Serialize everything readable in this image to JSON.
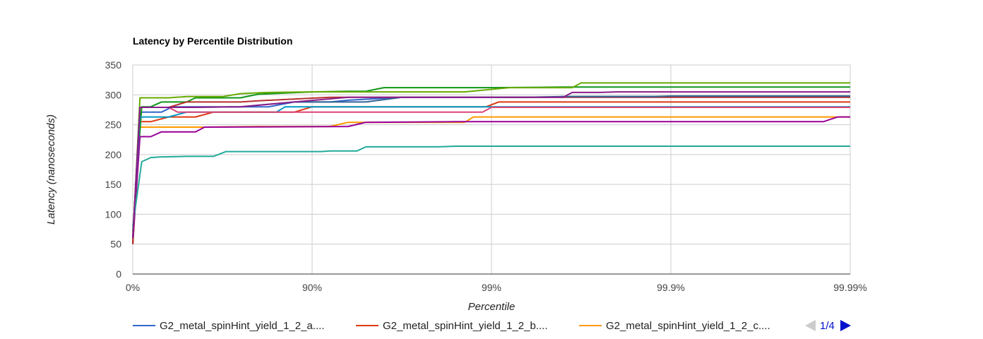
{
  "chart_data": {
    "type": "line",
    "title": "Latency by Percentile Distribution",
    "xlabel": "Percentile",
    "ylabel": "Latency (nanoseconds)",
    "x_tick_labels": [
      "0%",
      "90%",
      "99%",
      "99.9%",
      "99.99%"
    ],
    "x_scale": "log-percentile",
    "x_range": [
      0,
      4
    ],
    "y_ticks": [
      0,
      50,
      100,
      150,
      200,
      250,
      300,
      350
    ],
    "ylim": [
      0,
      350
    ],
    "grid": true,
    "legend_position": "bottom",
    "legend": {
      "visible_entries": [
        {
          "label": "G2_metal_spinHint_yield_1_2_a....",
          "color": "#3366cc"
        },
        {
          "label": "G2_metal_spinHint_yield_1_2_b....",
          "color": "#dc3912"
        },
        {
          "label": "G2_metal_spinHint_yield_1_2_c....",
          "color": "#ff9900"
        }
      ],
      "page_indicator": "1/4"
    },
    "series": [
      {
        "color": "#3366cc",
        "points": [
          [
            0,
            50
          ],
          [
            0.04,
            271
          ],
          [
            0.16,
            271
          ],
          [
            0.22,
            280
          ],
          [
            0.76,
            280
          ],
          [
            0.9,
            288
          ],
          [
            1.1,
            288
          ],
          [
            1.2,
            291
          ],
          [
            1.5,
            296
          ],
          [
            2.3,
            296
          ],
          [
            2.4,
            297
          ],
          [
            2.5,
            297
          ],
          [
            3.0,
            297
          ],
          [
            4.0,
            297
          ]
        ]
      },
      {
        "color": "#dc3912",
        "points": [
          [
            0,
            50
          ],
          [
            0.04,
            255
          ],
          [
            0.1,
            255
          ],
          [
            0.2,
            263
          ],
          [
            0.35,
            263
          ],
          [
            0.45,
            271
          ],
          [
            0.9,
            271
          ],
          [
            1.0,
            280
          ],
          [
            1.5,
            280
          ],
          [
            1.97,
            280
          ],
          [
            2.04,
            288
          ],
          [
            3.0,
            288
          ],
          [
            4.0,
            288
          ]
        ]
      },
      {
        "color": "#ff9900",
        "points": [
          [
            0,
            50
          ],
          [
            0.04,
            246
          ],
          [
            0.15,
            246
          ],
          [
            0.4,
            246
          ],
          [
            0.7,
            247
          ],
          [
            1.1,
            247
          ],
          [
            1.2,
            254
          ],
          [
            1.5,
            254
          ],
          [
            1.85,
            254
          ],
          [
            1.9,
            263
          ],
          [
            4.0,
            263
          ]
        ]
      },
      {
        "color": "#109618",
        "points": [
          [
            0,
            70
          ],
          [
            0.05,
            280
          ],
          [
            0.1,
            280
          ],
          [
            0.16,
            288
          ],
          [
            0.3,
            288
          ],
          [
            0.35,
            295
          ],
          [
            0.6,
            295
          ],
          [
            0.7,
            301
          ],
          [
            1.0,
            305
          ],
          [
            1.2,
            306
          ],
          [
            1.3,
            306
          ],
          [
            1.4,
            312
          ],
          [
            2.0,
            312
          ],
          [
            2.4,
            313
          ],
          [
            3.0,
            313
          ],
          [
            4.0,
            313
          ]
        ]
      },
      {
        "color": "#990099",
        "points": [
          [
            0,
            50
          ],
          [
            0.04,
            230
          ],
          [
            0.1,
            230
          ],
          [
            0.16,
            238
          ],
          [
            0.35,
            238
          ],
          [
            0.4,
            246
          ],
          [
            1.2,
            247
          ],
          [
            1.3,
            254
          ],
          [
            1.8,
            255
          ],
          [
            2.0,
            255
          ],
          [
            3.0,
            255
          ],
          [
            3.85,
            255
          ],
          [
            3.93,
            263
          ],
          [
            4.0,
            263
          ]
        ]
      },
      {
        "color": "#0099c6",
        "points": [
          [
            0,
            60
          ],
          [
            0.04,
            263
          ],
          [
            0.2,
            263
          ],
          [
            0.3,
            271
          ],
          [
            0.8,
            271
          ],
          [
            0.85,
            280
          ],
          [
            1.0,
            280
          ],
          [
            2.0,
            280
          ],
          [
            3.0,
            280
          ],
          [
            4.0,
            280
          ]
        ]
      },
      {
        "color": "#dd4477",
        "points": [
          [
            0,
            60
          ],
          [
            0.04,
            279
          ],
          [
            0.2,
            279
          ],
          [
            0.25,
            271
          ],
          [
            0.6,
            271
          ],
          [
            1.0,
            271
          ],
          [
            1.95,
            271
          ],
          [
            2.0,
            279
          ],
          [
            3.0,
            279
          ],
          [
            4.0,
            279
          ]
        ]
      },
      {
        "color": "#66aa00",
        "points": [
          [
            0,
            55
          ],
          [
            0.04,
            295
          ],
          [
            0.2,
            295
          ],
          [
            0.3,
            297
          ],
          [
            0.5,
            297
          ],
          [
            0.6,
            302
          ],
          [
            0.75,
            304
          ],
          [
            1.0,
            305
          ],
          [
            1.3,
            305
          ],
          [
            1.5,
            305
          ],
          [
            1.85,
            305
          ],
          [
            2.1,
            312
          ],
          [
            2.45,
            312
          ],
          [
            2.5,
            320
          ],
          [
            3.0,
            320
          ],
          [
            4.0,
            320
          ]
        ]
      },
      {
        "color": "#b82e2e",
        "points": [
          [
            0,
            50
          ],
          [
            0.04,
            279
          ],
          [
            0.2,
            279
          ],
          [
            0.3,
            288
          ],
          [
            0.6,
            288
          ],
          [
            0.7,
            290
          ],
          [
            1.1,
            296
          ],
          [
            1.5,
            296
          ],
          [
            2.5,
            296
          ],
          [
            3.0,
            296
          ],
          [
            4.0,
            296
          ]
        ]
      },
      {
        "color": "#316395",
        "points": [
          [
            0,
            60
          ],
          [
            0.04,
            279
          ],
          [
            0.3,
            279
          ],
          [
            0.6,
            280
          ],
          [
            0.9,
            288
          ],
          [
            1.3,
            288
          ],
          [
            1.5,
            296
          ],
          [
            2.2,
            296
          ],
          [
            2.4,
            297
          ],
          [
            2.9,
            297
          ],
          [
            3.0,
            298
          ],
          [
            4.0,
            298
          ]
        ]
      },
      {
        "color": "#22aa99",
        "points": [
          [
            0,
            80
          ],
          [
            0.05,
            188
          ],
          [
            0.1,
            195
          ],
          [
            0.15,
            196
          ],
          [
            0.3,
            197
          ],
          [
            0.45,
            197
          ],
          [
            0.52,
            205
          ],
          [
            0.8,
            205
          ],
          [
            1.05,
            205
          ],
          [
            1.1,
            206
          ],
          [
            1.25,
            206
          ],
          [
            1.3,
            213
          ],
          [
            1.7,
            213
          ],
          [
            1.8,
            214
          ],
          [
            4.0,
            214
          ]
        ]
      },
      {
        "color": "#8b1a8b",
        "points": [
          [
            0,
            60
          ],
          [
            0.04,
            279
          ],
          [
            0.3,
            279
          ],
          [
            0.6,
            280
          ],
          [
            0.9,
            288
          ],
          [
            1.2,
            296
          ],
          [
            1.5,
            296
          ],
          [
            2.0,
            296
          ],
          [
            2.4,
            296
          ],
          [
            2.45,
            304
          ],
          [
            2.6,
            304
          ],
          [
            2.7,
            305
          ],
          [
            3.0,
            305
          ],
          [
            4.0,
            305
          ]
        ]
      }
    ]
  }
}
